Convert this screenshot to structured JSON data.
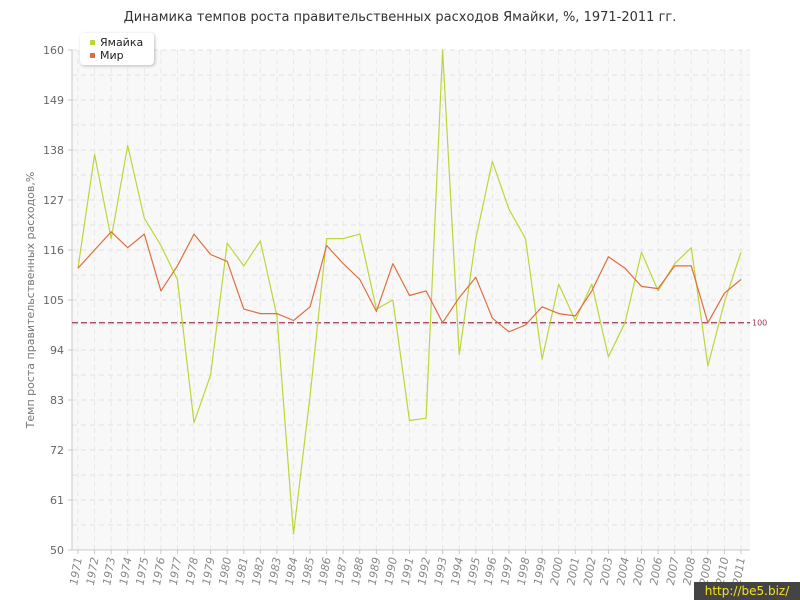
{
  "chart_data": {
    "type": "line",
    "title": "Динамика темпов роста правительственных расходов Ямайки, %, 1971-2011 гг.",
    "ylabel": "Темп роста правительственных расходов,%",
    "xlabel": "",
    "ylim": [
      50,
      160
    ],
    "yticks": [
      "50",
      "61",
      "72",
      "83",
      "94",
      "105",
      "116",
      "127",
      "138",
      "149",
      "160"
    ],
    "categories": [
      "1971",
      "1972",
      "1973",
      "1974",
      "1975",
      "1976",
      "1977",
      "1978",
      "1979",
      "1980",
      "1981",
      "1982",
      "1983",
      "1984",
      "1985",
      "1986",
      "1987",
      "1988",
      "1989",
      "1990",
      "1991",
      "1992",
      "1993",
      "1994",
      "1995",
      "1996",
      "1997",
      "1998",
      "1999",
      "2000",
      "2001",
      "2002",
      "2003",
      "2004",
      "2005",
      "2006",
      "2007",
      "2008",
      "2009",
      "2010",
      "2011"
    ],
    "series": [
      {
        "name": "Ямайка",
        "color": "#bcd63a",
        "values": [
          112,
          137,
          118.5,
          139,
          123,
          117,
          109.5,
          78,
          88.5,
          117.5,
          112.5,
          118,
          101.5,
          53.5,
          84,
          118.5,
          118.5,
          119.5,
          103,
          105,
          78.5,
          79,
          160,
          93,
          118.5,
          135.5,
          125,
          118.5,
          92,
          108.5,
          100.5,
          108.5,
          92.5,
          100,
          115.5,
          107,
          113,
          116.5,
          90.5,
          104.5,
          115.5
        ]
      },
      {
        "name": "Мир",
        "color": "#dd6f3f",
        "values": [
          112,
          116,
          120,
          116.5,
          119.5,
          107,
          112.5,
          119.5,
          115,
          113.5,
          103,
          102,
          102,
          100.5,
          103.5,
          117,
          113,
          109.5,
          102.5,
          113,
          106,
          107,
          100,
          105.5,
          110,
          101,
          98,
          99.5,
          103.5,
          102,
          101.5,
          107,
          114.5,
          112,
          108,
          107.5,
          112.5,
          112.5,
          100,
          106.5,
          109.5
        ]
      }
    ],
    "reference_line": {
      "value": 100,
      "label": "100",
      "color": "#9b3650"
    },
    "grid": true,
    "legend_placement": "top-left"
  },
  "watermark": "http://be5.biz/"
}
